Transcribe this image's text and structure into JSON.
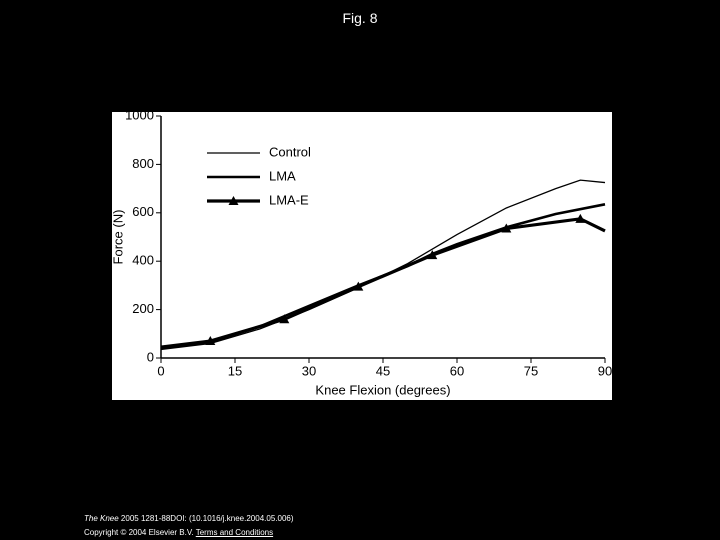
{
  "header": {
    "title": "Fig. 8"
  },
  "chart_data": {
    "type": "line",
    "xlabel": "Knee Flexion (degrees)",
    "ylabel": "Force (N)",
    "xlim": [
      0,
      90
    ],
    "xticks": [
      0,
      15,
      30,
      45,
      60,
      75,
      90
    ],
    "ylim": [
      0,
      1000
    ],
    "yticks": [
      0,
      200,
      400,
      600,
      800,
      1000
    ],
    "legend": "upper left",
    "series": [
      {
        "name": "Control",
        "color": "#000000",
        "width": 1.3,
        "marker": "none",
        "x": [
          0,
          10,
          20,
          30,
          40,
          50,
          60,
          70,
          80,
          85,
          90
        ],
        "values": [
          35,
          60,
          120,
          200,
          290,
          390,
          510,
          620,
          700,
          735,
          725
        ]
      },
      {
        "name": "LMA",
        "color": "#000000",
        "width": 2.6,
        "marker": "none",
        "x": [
          0,
          10,
          20,
          30,
          40,
          50,
          55,
          60,
          70,
          80,
          90
        ],
        "values": [
          40,
          65,
          130,
          215,
          300,
          380,
          430,
          470,
          540,
          595,
          635
        ]
      },
      {
        "name": "LMA-E",
        "color": "#000000",
        "width": 3.2,
        "marker": "triangle",
        "x": [
          0,
          10,
          25,
          40,
          55,
          70,
          85,
          90
        ],
        "values": [
          45,
          70,
          160,
          295,
          425,
          535,
          575,
          525
        ]
      }
    ]
  },
  "footer": {
    "journal": "The Knee",
    "citation": " 2005 1281-88DOI: (10.1016/j.knee.2004.05.006)",
    "copyright": "Copyright © 2004 Elsevier B.V.",
    "link": "Terms and Conditions"
  }
}
